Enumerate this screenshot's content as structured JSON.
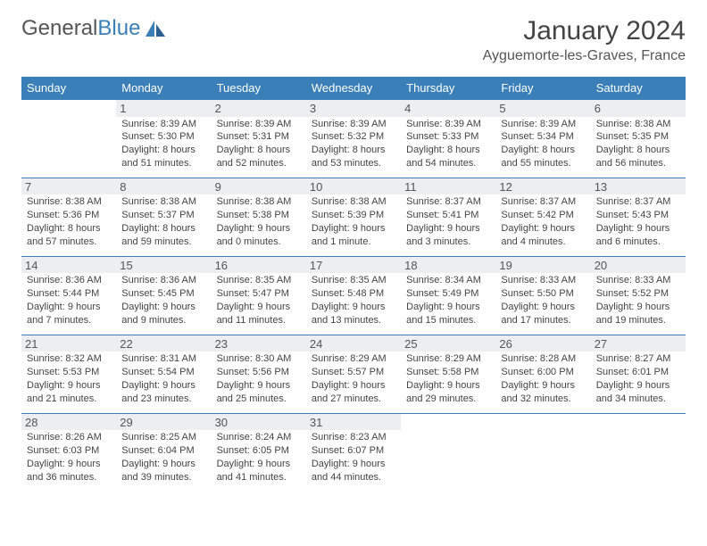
{
  "logo": {
    "textA": "General",
    "textB": "Blue"
  },
  "title": "January 2024",
  "location": "Ayguemorte-les-Graves, France",
  "colors": {
    "headerBg": "#3a7fb8",
    "headerText": "#ffffff",
    "ruleColor": "#3a7fb8",
    "dayNumBg": "#eceeef",
    "bodyText": "#444444",
    "pageBg": "#ffffff"
  },
  "weekdays": [
    "Sunday",
    "Monday",
    "Tuesday",
    "Wednesday",
    "Thursday",
    "Friday",
    "Saturday"
  ],
  "weeks": [
    [
      null,
      {
        "n": "1",
        "sr": "Sunrise: 8:39 AM",
        "ss": "Sunset: 5:30 PM",
        "d1": "Daylight: 8 hours",
        "d2": "and 51 minutes."
      },
      {
        "n": "2",
        "sr": "Sunrise: 8:39 AM",
        "ss": "Sunset: 5:31 PM",
        "d1": "Daylight: 8 hours",
        "d2": "and 52 minutes."
      },
      {
        "n": "3",
        "sr": "Sunrise: 8:39 AM",
        "ss": "Sunset: 5:32 PM",
        "d1": "Daylight: 8 hours",
        "d2": "and 53 minutes."
      },
      {
        "n": "4",
        "sr": "Sunrise: 8:39 AM",
        "ss": "Sunset: 5:33 PM",
        "d1": "Daylight: 8 hours",
        "d2": "and 54 minutes."
      },
      {
        "n": "5",
        "sr": "Sunrise: 8:39 AM",
        "ss": "Sunset: 5:34 PM",
        "d1": "Daylight: 8 hours",
        "d2": "and 55 minutes."
      },
      {
        "n": "6",
        "sr": "Sunrise: 8:38 AM",
        "ss": "Sunset: 5:35 PM",
        "d1": "Daylight: 8 hours",
        "d2": "and 56 minutes."
      }
    ],
    [
      {
        "n": "7",
        "sr": "Sunrise: 8:38 AM",
        "ss": "Sunset: 5:36 PM",
        "d1": "Daylight: 8 hours",
        "d2": "and 57 minutes."
      },
      {
        "n": "8",
        "sr": "Sunrise: 8:38 AM",
        "ss": "Sunset: 5:37 PM",
        "d1": "Daylight: 8 hours",
        "d2": "and 59 minutes."
      },
      {
        "n": "9",
        "sr": "Sunrise: 8:38 AM",
        "ss": "Sunset: 5:38 PM",
        "d1": "Daylight: 9 hours",
        "d2": "and 0 minutes."
      },
      {
        "n": "10",
        "sr": "Sunrise: 8:38 AM",
        "ss": "Sunset: 5:39 PM",
        "d1": "Daylight: 9 hours",
        "d2": "and 1 minute."
      },
      {
        "n": "11",
        "sr": "Sunrise: 8:37 AM",
        "ss": "Sunset: 5:41 PM",
        "d1": "Daylight: 9 hours",
        "d2": "and 3 minutes."
      },
      {
        "n": "12",
        "sr": "Sunrise: 8:37 AM",
        "ss": "Sunset: 5:42 PM",
        "d1": "Daylight: 9 hours",
        "d2": "and 4 minutes."
      },
      {
        "n": "13",
        "sr": "Sunrise: 8:37 AM",
        "ss": "Sunset: 5:43 PM",
        "d1": "Daylight: 9 hours",
        "d2": "and 6 minutes."
      }
    ],
    [
      {
        "n": "14",
        "sr": "Sunrise: 8:36 AM",
        "ss": "Sunset: 5:44 PM",
        "d1": "Daylight: 9 hours",
        "d2": "and 7 minutes."
      },
      {
        "n": "15",
        "sr": "Sunrise: 8:36 AM",
        "ss": "Sunset: 5:45 PM",
        "d1": "Daylight: 9 hours",
        "d2": "and 9 minutes."
      },
      {
        "n": "16",
        "sr": "Sunrise: 8:35 AM",
        "ss": "Sunset: 5:47 PM",
        "d1": "Daylight: 9 hours",
        "d2": "and 11 minutes."
      },
      {
        "n": "17",
        "sr": "Sunrise: 8:35 AM",
        "ss": "Sunset: 5:48 PM",
        "d1": "Daylight: 9 hours",
        "d2": "and 13 minutes."
      },
      {
        "n": "18",
        "sr": "Sunrise: 8:34 AM",
        "ss": "Sunset: 5:49 PM",
        "d1": "Daylight: 9 hours",
        "d2": "and 15 minutes."
      },
      {
        "n": "19",
        "sr": "Sunrise: 8:33 AM",
        "ss": "Sunset: 5:50 PM",
        "d1": "Daylight: 9 hours",
        "d2": "and 17 minutes."
      },
      {
        "n": "20",
        "sr": "Sunrise: 8:33 AM",
        "ss": "Sunset: 5:52 PM",
        "d1": "Daylight: 9 hours",
        "d2": "and 19 minutes."
      }
    ],
    [
      {
        "n": "21",
        "sr": "Sunrise: 8:32 AM",
        "ss": "Sunset: 5:53 PM",
        "d1": "Daylight: 9 hours",
        "d2": "and 21 minutes."
      },
      {
        "n": "22",
        "sr": "Sunrise: 8:31 AM",
        "ss": "Sunset: 5:54 PM",
        "d1": "Daylight: 9 hours",
        "d2": "and 23 minutes."
      },
      {
        "n": "23",
        "sr": "Sunrise: 8:30 AM",
        "ss": "Sunset: 5:56 PM",
        "d1": "Daylight: 9 hours",
        "d2": "and 25 minutes."
      },
      {
        "n": "24",
        "sr": "Sunrise: 8:29 AM",
        "ss": "Sunset: 5:57 PM",
        "d1": "Daylight: 9 hours",
        "d2": "and 27 minutes."
      },
      {
        "n": "25",
        "sr": "Sunrise: 8:29 AM",
        "ss": "Sunset: 5:58 PM",
        "d1": "Daylight: 9 hours",
        "d2": "and 29 minutes."
      },
      {
        "n": "26",
        "sr": "Sunrise: 8:28 AM",
        "ss": "Sunset: 6:00 PM",
        "d1": "Daylight: 9 hours",
        "d2": "and 32 minutes."
      },
      {
        "n": "27",
        "sr": "Sunrise: 8:27 AM",
        "ss": "Sunset: 6:01 PM",
        "d1": "Daylight: 9 hours",
        "d2": "and 34 minutes."
      }
    ],
    [
      {
        "n": "28",
        "sr": "Sunrise: 8:26 AM",
        "ss": "Sunset: 6:03 PM",
        "d1": "Daylight: 9 hours",
        "d2": "and 36 minutes."
      },
      {
        "n": "29",
        "sr": "Sunrise: 8:25 AM",
        "ss": "Sunset: 6:04 PM",
        "d1": "Daylight: 9 hours",
        "d2": "and 39 minutes."
      },
      {
        "n": "30",
        "sr": "Sunrise: 8:24 AM",
        "ss": "Sunset: 6:05 PM",
        "d1": "Daylight: 9 hours",
        "d2": "and 41 minutes."
      },
      {
        "n": "31",
        "sr": "Sunrise: 8:23 AM",
        "ss": "Sunset: 6:07 PM",
        "d1": "Daylight: 9 hours",
        "d2": "and 44 minutes."
      },
      null,
      null,
      null
    ]
  ]
}
